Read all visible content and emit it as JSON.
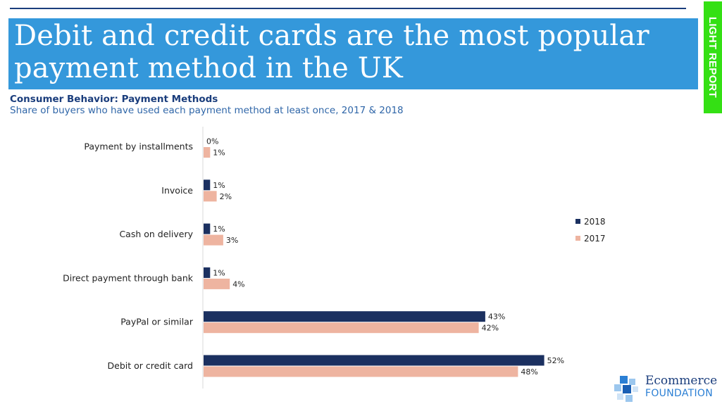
{
  "header": {
    "title": "Debit and credit cards are the most popular payment method in the UK",
    "side_tab": "LIGHT REPORT"
  },
  "chart_header": {
    "subtitle": "Consumer Behavior: Payment Methods",
    "description": "Share of buyers who have used each payment method at least once, 2017 & 2018"
  },
  "colors": {
    "banner": "#3498db",
    "series_2018": "#1b3060",
    "series_2017": "#eeb4a0",
    "side_tab": "#34e014"
  },
  "chart_data": {
    "type": "bar",
    "orientation": "horizontal",
    "categories": [
      "Payment by installments",
      "Invoice",
      "Cash on delivery",
      "Direct payment through bank",
      "PayPal or similar",
      "Debit or credit card"
    ],
    "series": [
      {
        "name": "2018",
        "values": [
          0,
          1,
          1,
          1,
          43,
          52
        ],
        "labels": [
          "0%",
          "1%",
          "1%",
          "1%",
          "43%",
          "52%"
        ]
      },
      {
        "name": "2017",
        "values": [
          1,
          2,
          3,
          4,
          42,
          48
        ],
        "labels": [
          "1%",
          "2%",
          "3%",
          "4%",
          "42%",
          "48%"
        ]
      }
    ],
    "unit": "%",
    "xlim": [
      0,
      60
    ],
    "grid": false,
    "legend_position": "right"
  },
  "logo": {
    "line1": "Ecommerce",
    "line2": "FOUNDATION",
    "icon": "cubes-logo-icon"
  }
}
